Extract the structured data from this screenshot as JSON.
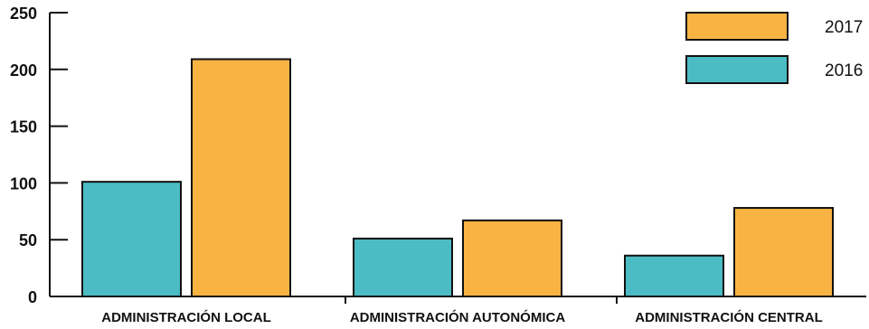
{
  "chart_data": {
    "type": "bar",
    "categories": [
      "ADMINISTRACIÓN LOCAL",
      "ADMINISTRACIÓN AUTONÓMICA",
      "ADMINISTRACIÓN CENTRAL"
    ],
    "series": [
      {
        "name": "2016",
        "values": [
          101,
          51,
          36
        ],
        "color": "#4bbcc4"
      },
      {
        "name": "2017",
        "values": [
          209,
          67,
          78
        ],
        "color": "#f9b343"
      }
    ],
    "legend_order": [
      "2017",
      "2016"
    ],
    "legend_position": "top-right",
    "yticks": [
      0,
      50,
      100,
      150,
      200,
      250
    ],
    "ylim": [
      0,
      250
    ],
    "grid": false,
    "title": "",
    "xlabel": "",
    "ylabel": ""
  }
}
